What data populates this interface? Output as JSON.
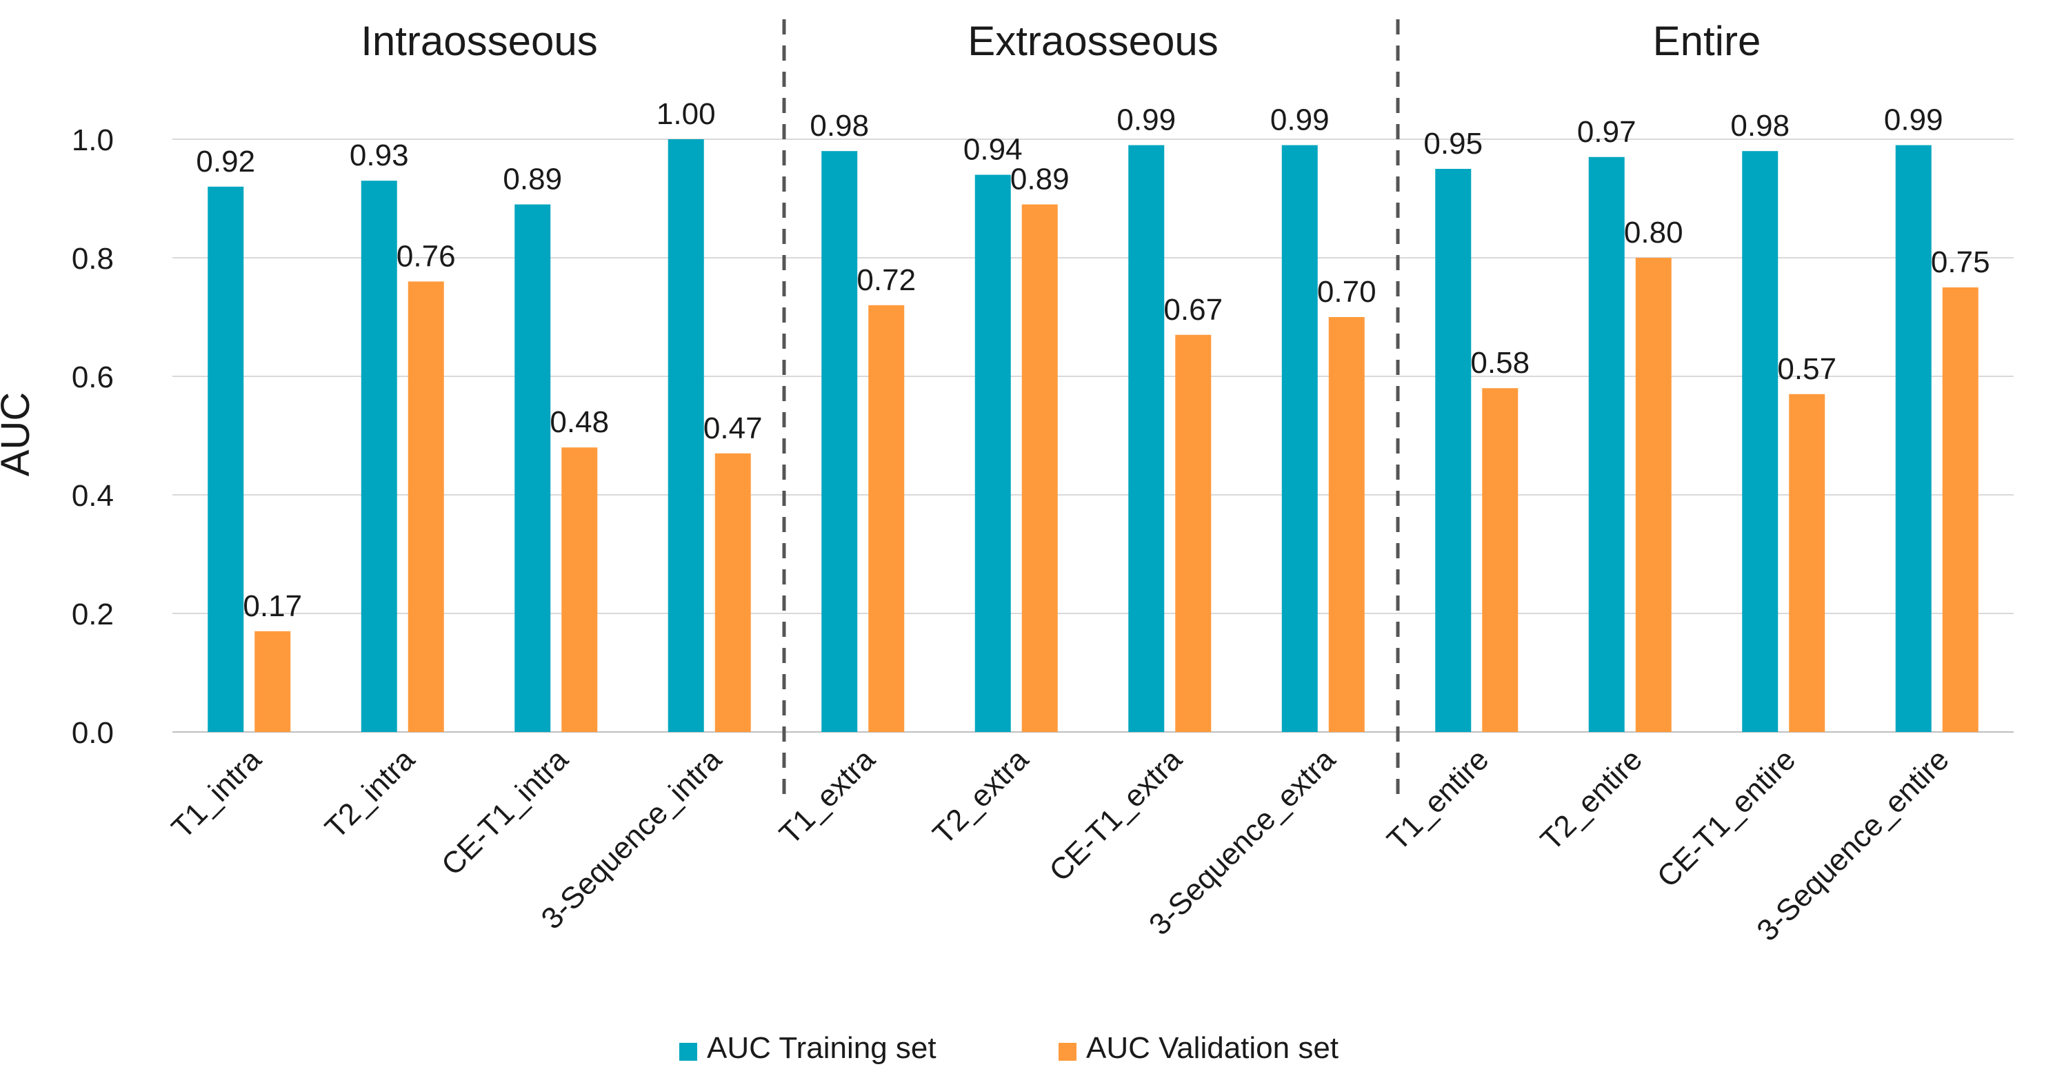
{
  "colors": {
    "training": "#00A6BF",
    "validation": "#FF9A3C",
    "grid": "#d9d9d9",
    "divider": "#555555",
    "text": "#1a1a1a"
  },
  "chart_data": {
    "type": "bar",
    "title": "",
    "xlabel": "",
    "ylabel": "AUC",
    "ylim": [
      0,
      1.0
    ],
    "yticks": [
      "0.0",
      "0.2",
      "0.4",
      "0.6",
      "0.8",
      "1.0"
    ],
    "grid": "horizontal",
    "legend_position": "bottom",
    "groups": [
      {
        "label": "Intraosseous",
        "categories": [
          "T1_intra",
          "T2_intra",
          "CE-T1_intra",
          "3-Sequence_intra"
        ]
      },
      {
        "label": "Extraosseous",
        "categories": [
          "T1_extra",
          "T2_extra",
          "CE-T1_extra",
          "3-Sequence_extra"
        ]
      },
      {
        "label": "Entire",
        "categories": [
          "T1_entire",
          "T2_entire",
          "CE-T1_entire",
          "3-Sequence_entire"
        ]
      }
    ],
    "categories": [
      "T1_intra",
      "T2_intra",
      "CE-T1_intra",
      "3-Sequence_intra",
      "T1_extra",
      "T2_extra",
      "CE-T1_extra",
      "3-Sequence_extra",
      "T1_entire",
      "T2_entire",
      "CE-T1_entire",
      "3-Sequence_entire"
    ],
    "series": [
      {
        "name": "AUC Training set",
        "color_key": "training",
        "values": [
          0.92,
          0.93,
          0.89,
          1.0,
          0.98,
          0.94,
          0.99,
          0.99,
          0.95,
          0.97,
          0.98,
          0.99
        ],
        "labels": [
          "0.92",
          "0.93",
          "0.89",
          "1.00",
          "0.98",
          "0.94",
          "0.99",
          "0.99",
          "0.95",
          "0.97",
          "0.98",
          "0.99"
        ]
      },
      {
        "name": "AUC Validation set",
        "color_key": "validation",
        "values": [
          0.17,
          0.76,
          0.48,
          0.47,
          0.72,
          0.89,
          0.67,
          0.7,
          0.58,
          0.8,
          0.57,
          0.75
        ],
        "labels": [
          "0.17",
          "0.76",
          "0.48",
          "0.47",
          "0.72",
          "0.89",
          "0.67",
          "0.70",
          "0.58",
          "0.80",
          "0.57",
          "0.75"
        ]
      }
    ]
  }
}
